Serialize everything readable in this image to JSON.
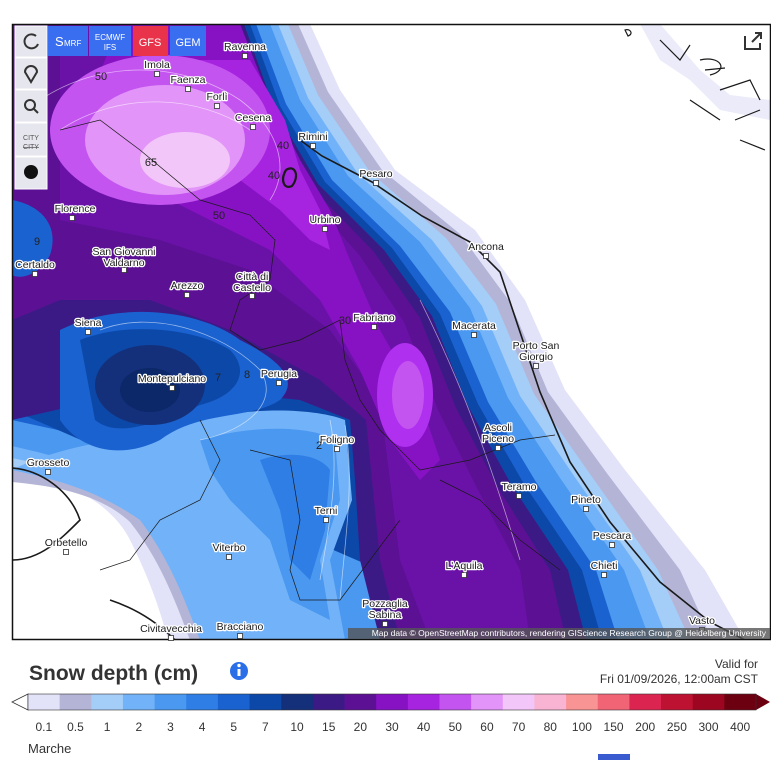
{
  "toolbar": {
    "models": [
      [
        "S",
        "MRF"
      ],
      [
        "ECMWF",
        "IFS"
      ],
      [
        "GFS"
      ],
      [
        "GEM"
      ]
    ],
    "city_button": [
      "CITY",
      "CITY"
    ]
  },
  "cities": [
    [
      "Ravenna"
    ],
    [
      "Imola"
    ],
    [
      "Faenza"
    ],
    [
      "Forlì"
    ],
    [
      "Cesena"
    ],
    [
      "Rimini"
    ],
    [
      "Pesaro"
    ],
    [
      "Urbino"
    ],
    [
      "Florence"
    ],
    [
      "Ancona"
    ],
    [
      "San Giovanni",
      "Valdarno"
    ],
    [
      "Certaldo"
    ],
    [
      "Città di",
      "Castello"
    ],
    [
      "Arezzo"
    ],
    [
      "Fabriano"
    ],
    [
      "Macerata"
    ],
    [
      "Siena"
    ],
    [
      "Porto San",
      "Giorgio"
    ],
    [
      "Montepulciano"
    ],
    [
      "Perugia"
    ],
    [
      "Foligno"
    ],
    [
      "Ascoli",
      "Piceno"
    ],
    [
      "Grosseto"
    ],
    [
      "Teramo"
    ],
    [
      "Pineto"
    ],
    [
      "Terni"
    ],
    [
      "Orbetello"
    ],
    [
      "Viterbo"
    ],
    [
      "Pescara"
    ],
    [
      "L'Aquila"
    ],
    [
      "Chieti"
    ],
    [
      "Pozzaglia",
      "Sabina"
    ],
    [
      "Vasto"
    ],
    [
      "Civitavecchia"
    ],
    [
      "Bracciano"
    ]
  ],
  "contour_labels": [
    "50",
    "65",
    "50",
    "40",
    "40",
    "9",
    "30",
    "7",
    "8",
    "2"
  ],
  "attribution": "Map data © OpenStreetMap contributors, rendering GIScience Research Group @ Heidelberg University",
  "title": "Snow depth (cm)",
  "valid_label": "Valid for",
  "valid_time": "Fri 01/09/2026, 12:00am CST",
  "legend": {
    "labels": [
      "0.1",
      "0.5",
      "1",
      "2",
      "3",
      "4",
      "5",
      "7",
      "10",
      "15",
      "20",
      "30",
      "40",
      "50",
      "60",
      "70",
      "80",
      "100",
      "150",
      "200",
      "250",
      "300",
      "400"
    ],
    "colors": [
      "#e2e2f8",
      "#b4b4d6",
      "#a4cdf8",
      "#72b2f8",
      "#4a98f0",
      "#2e7ee6",
      "#1a62d0",
      "#0c48a8",
      "#14307a",
      "#3c1a86",
      "#5c1094",
      "#8612c4",
      "#a624e0",
      "#c454f0",
      "#e294f8",
      "#f2c6f8",
      "#f8b4d2",
      "#f89494",
      "#f06476",
      "#dc2450",
      "#be1232",
      "#9c0620",
      "#6c0010"
    ]
  },
  "region": "Marche"
}
